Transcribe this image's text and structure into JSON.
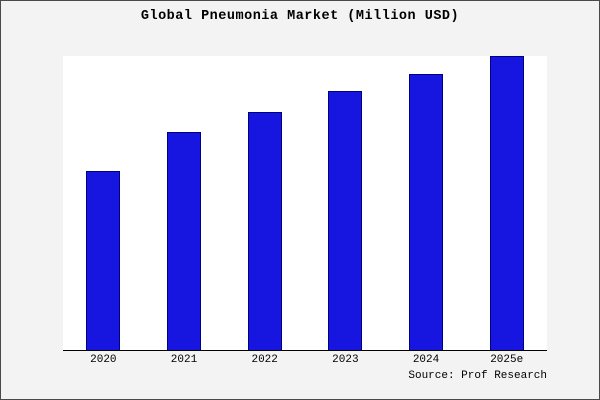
{
  "chart_data": {
    "type": "bar",
    "title": "Global Pneumonia Market (Million USD)",
    "categories": [
      "2020",
      "2021",
      "2022",
      "2023",
      "2024",
      "2025e"
    ],
    "values": [
      61,
      74,
      81,
      88,
      94,
      100
    ],
    "ylim": [
      0,
      100
    ],
    "xlabel": "",
    "ylabel": "",
    "grid": false,
    "legend": false,
    "bar_color": "#1616e0",
    "bar_border_color": "#000080",
    "plot_background": "#ffffff",
    "page_background": "#f3f3f3",
    "note": "no y-axis tick labels shown; values are relative heights with tallest bar = 100"
  },
  "source": {
    "label": "Source: Prof Research"
  }
}
